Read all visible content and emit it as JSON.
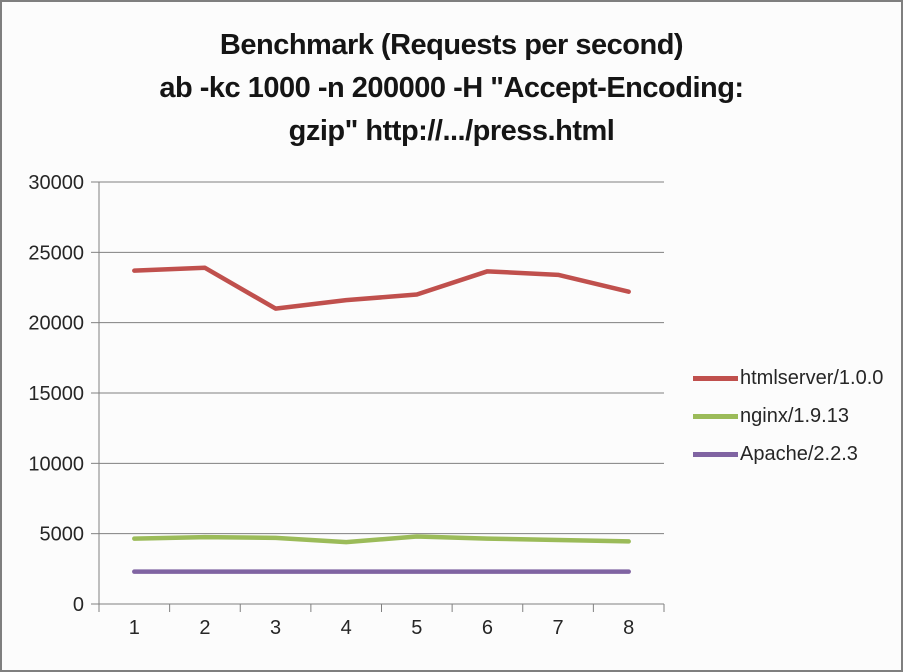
{
  "window": {
    "title_lines": [
      "Benchmark (Requests per second)",
      "ab -kc 1000 -n 200000 -H \"Accept-Encoding:",
      "gzip\" http://.../press.html"
    ]
  },
  "chart_data": {
    "type": "line",
    "title": "Benchmark (Requests per second) ab -kc 1000 -n 200000 -H \"Accept-Encoding: gzip\" http://.../press.html",
    "categories": [
      "1",
      "2",
      "3",
      "4",
      "5",
      "6",
      "7",
      "8"
    ],
    "series": [
      {
        "name": "htmlserver/1.0.0",
        "color": "#C0504D",
        "values": [
          23700,
          23900,
          21000,
          21600,
          22000,
          23650,
          23400,
          22200
        ]
      },
      {
        "name": "nginx/1.9.13",
        "color": "#9BBB59",
        "values": [
          4650,
          4750,
          4700,
          4400,
          4800,
          4650,
          4550,
          4450
        ]
      },
      {
        "name": "Apache/2.2.3",
        "color": "#8064A2",
        "values": [
          2300,
          2300,
          2300,
          2300,
          2300,
          2300,
          2300,
          2300
        ]
      }
    ],
    "xlabel": "",
    "ylabel": "",
    "ylim": [
      0,
      30000
    ],
    "yticks": [
      0,
      5000,
      10000,
      15000,
      20000,
      25000,
      30000
    ],
    "grid": true,
    "legend_position": "right",
    "colors": {
      "grid": "#808080",
      "axis": "#808080",
      "tick_text": "#262626",
      "title_text": "#151515",
      "frame_border": "#7F7F7F",
      "background": "#FCFCFC"
    }
  }
}
